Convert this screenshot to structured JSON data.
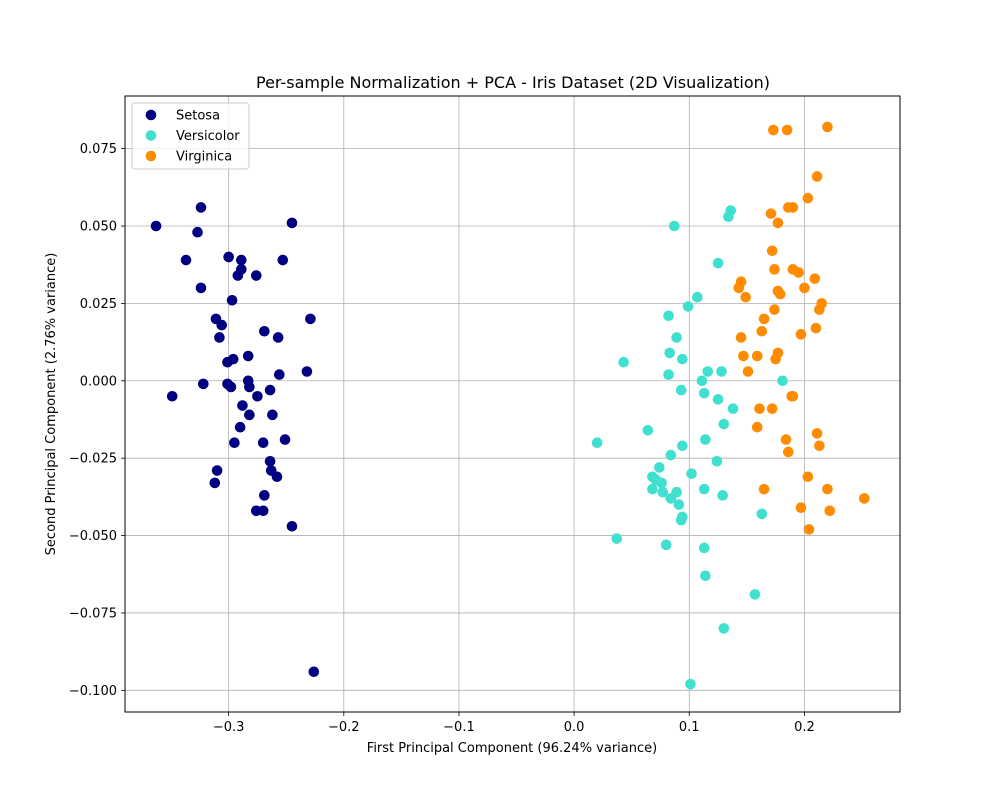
{
  "chart_data": {
    "type": "scatter",
    "title": "Per-sample Normalization + PCA - Iris Dataset (2D Visualization)",
    "xlabel": "First Principal Component (96.24% variance)",
    "ylabel": "Second Principal Component (2.76% variance)",
    "xlim": [
      -0.39,
      0.283
    ],
    "ylim": [
      -0.107,
      0.092
    ],
    "xticks": [
      -0.3,
      -0.2,
      -0.1,
      0.0,
      0.1,
      0.2
    ],
    "xtick_labels": [
      "−0.3",
      "−0.2",
      "−0.1",
      "0.0",
      "0.1",
      "0.2"
    ],
    "yticks": [
      -0.1,
      -0.075,
      -0.05,
      -0.025,
      0.0,
      0.025,
      0.05,
      0.075
    ],
    "ytick_labels": [
      "−0.100",
      "−0.075",
      "−0.050",
      "−0.025",
      "0.000",
      "0.025",
      "0.050",
      "0.075"
    ],
    "grid": true,
    "legend_position": "upper-left",
    "series": [
      {
        "name": "Setosa",
        "color": "#000080",
        "points": [
          [
            -0.363,
            0.05
          ],
          [
            -0.324,
            0.056
          ],
          [
            -0.327,
            0.048
          ],
          [
            -0.245,
            0.051
          ],
          [
            -0.337,
            0.039
          ],
          [
            -0.3,
            0.04
          ],
          [
            -0.289,
            0.039
          ],
          [
            -0.253,
            0.039
          ],
          [
            -0.289,
            0.036
          ],
          [
            -0.292,
            0.034
          ],
          [
            -0.276,
            0.034
          ],
          [
            -0.324,
            0.03
          ],
          [
            -0.297,
            0.026
          ],
          [
            -0.229,
            0.02
          ],
          [
            -0.311,
            0.02
          ],
          [
            -0.306,
            0.018
          ],
          [
            -0.269,
            0.016
          ],
          [
            -0.308,
            0.014
          ],
          [
            -0.257,
            0.014
          ],
          [
            -0.296,
            0.007
          ],
          [
            -0.301,
            0.006
          ],
          [
            -0.283,
            0.008
          ],
          [
            -0.232,
            0.003
          ],
          [
            -0.256,
            0.002
          ],
          [
            -0.283,
            0.0
          ],
          [
            -0.301,
            -0.001
          ],
          [
            -0.298,
            -0.002
          ],
          [
            -0.322,
            -0.001
          ],
          [
            -0.282,
            -0.002
          ],
          [
            -0.264,
            -0.003
          ],
          [
            -0.349,
            -0.005
          ],
          [
            -0.275,
            -0.005
          ],
          [
            -0.288,
            -0.008
          ],
          [
            -0.282,
            -0.011
          ],
          [
            -0.262,
            -0.011
          ],
          [
            -0.29,
            -0.015
          ],
          [
            -0.251,
            -0.019
          ],
          [
            -0.27,
            -0.02
          ],
          [
            -0.295,
            -0.02
          ],
          [
            -0.264,
            -0.026
          ],
          [
            -0.263,
            -0.029
          ],
          [
            -0.31,
            -0.029
          ],
          [
            -0.258,
            -0.031
          ],
          [
            -0.312,
            -0.033
          ],
          [
            -0.269,
            -0.037
          ],
          [
            -0.276,
            -0.042
          ],
          [
            -0.27,
            -0.042
          ],
          [
            -0.245,
            -0.047
          ],
          [
            -0.226,
            -0.094
          ]
        ]
      },
      {
        "name": "Versicolor",
        "color": "#40E0D0",
        "points": [
          [
            0.136,
            0.055
          ],
          [
            0.134,
            0.053
          ],
          [
            0.087,
            0.05
          ],
          [
            0.125,
            0.038
          ],
          [
            0.107,
            0.027
          ],
          [
            0.099,
            0.024
          ],
          [
            0.082,
            0.021
          ],
          [
            0.089,
            0.014
          ],
          [
            0.083,
            0.009
          ],
          [
            0.094,
            0.007
          ],
          [
            0.043,
            0.006
          ],
          [
            0.116,
            0.003
          ],
          [
            0.128,
            0.003
          ],
          [
            0.082,
            0.002
          ],
          [
            0.111,
            0.0
          ],
          [
            0.181,
            0.0
          ],
          [
            0.093,
            -0.003
          ],
          [
            0.113,
            -0.004
          ],
          [
            0.125,
            -0.006
          ],
          [
            0.138,
            -0.009
          ],
          [
            0.13,
            -0.014
          ],
          [
            0.064,
            -0.016
          ],
          [
            0.114,
            -0.019
          ],
          [
            0.02,
            -0.02
          ],
          [
            0.094,
            -0.021
          ],
          [
            0.084,
            -0.024
          ],
          [
            0.124,
            -0.026
          ],
          [
            0.074,
            -0.028
          ],
          [
            0.102,
            -0.03
          ],
          [
            0.068,
            -0.031
          ],
          [
            0.071,
            -0.032
          ],
          [
            0.076,
            -0.033
          ],
          [
            0.068,
            -0.035
          ],
          [
            0.113,
            -0.035
          ],
          [
            0.077,
            -0.036
          ],
          [
            0.089,
            -0.036
          ],
          [
            0.129,
            -0.037
          ],
          [
            0.084,
            -0.038
          ],
          [
            0.091,
            -0.04
          ],
          [
            0.163,
            -0.043
          ],
          [
            0.094,
            -0.044
          ],
          [
            0.093,
            -0.045
          ],
          [
            0.037,
            -0.051
          ],
          [
            0.08,
            -0.053
          ],
          [
            0.113,
            -0.054
          ],
          [
            0.114,
            -0.063
          ],
          [
            0.157,
            -0.069
          ],
          [
            0.13,
            -0.08
          ],
          [
            0.101,
            -0.098
          ]
        ]
      },
      {
        "name": "Virginica",
        "color": "#FF8C00",
        "points": [
          [
            0.173,
            0.081
          ],
          [
            0.185,
            0.081
          ],
          [
            0.22,
            0.082
          ],
          [
            0.211,
            0.066
          ],
          [
            0.203,
            0.059
          ],
          [
            0.186,
            0.056
          ],
          [
            0.19,
            0.056
          ],
          [
            0.171,
            0.054
          ],
          [
            0.177,
            0.051
          ],
          [
            0.172,
            0.042
          ],
          [
            0.174,
            0.036
          ],
          [
            0.19,
            0.036
          ],
          [
            0.195,
            0.035
          ],
          [
            0.209,
            0.033
          ],
          [
            0.145,
            0.032
          ],
          [
            0.143,
            0.03
          ],
          [
            0.2,
            0.03
          ],
          [
            0.177,
            0.029
          ],
          [
            0.179,
            0.028
          ],
          [
            0.149,
            0.027
          ],
          [
            0.215,
            0.025
          ],
          [
            0.174,
            0.023
          ],
          [
            0.213,
            0.023
          ],
          [
            0.165,
            0.02
          ],
          [
            0.21,
            0.017
          ],
          [
            0.163,
            0.016
          ],
          [
            0.197,
            0.015
          ],
          [
            0.145,
            0.014
          ],
          [
            0.177,
            0.009
          ],
          [
            0.147,
            0.008
          ],
          [
            0.159,
            0.008
          ],
          [
            0.175,
            0.007
          ],
          [
            0.151,
            0.003
          ],
          [
            0.19,
            -0.005
          ],
          [
            0.189,
            -0.005
          ],
          [
            0.161,
            -0.009
          ],
          [
            0.172,
            -0.009
          ],
          [
            0.159,
            -0.015
          ],
          [
            0.211,
            -0.017
          ],
          [
            0.184,
            -0.019
          ],
          [
            0.213,
            -0.021
          ],
          [
            0.186,
            -0.023
          ],
          [
            0.203,
            -0.031
          ],
          [
            0.22,
            -0.035
          ],
          [
            0.165,
            -0.035
          ],
          [
            0.252,
            -0.038
          ],
          [
            0.197,
            -0.041
          ],
          [
            0.222,
            -0.042
          ],
          [
            0.204,
            -0.048
          ]
        ]
      }
    ]
  }
}
